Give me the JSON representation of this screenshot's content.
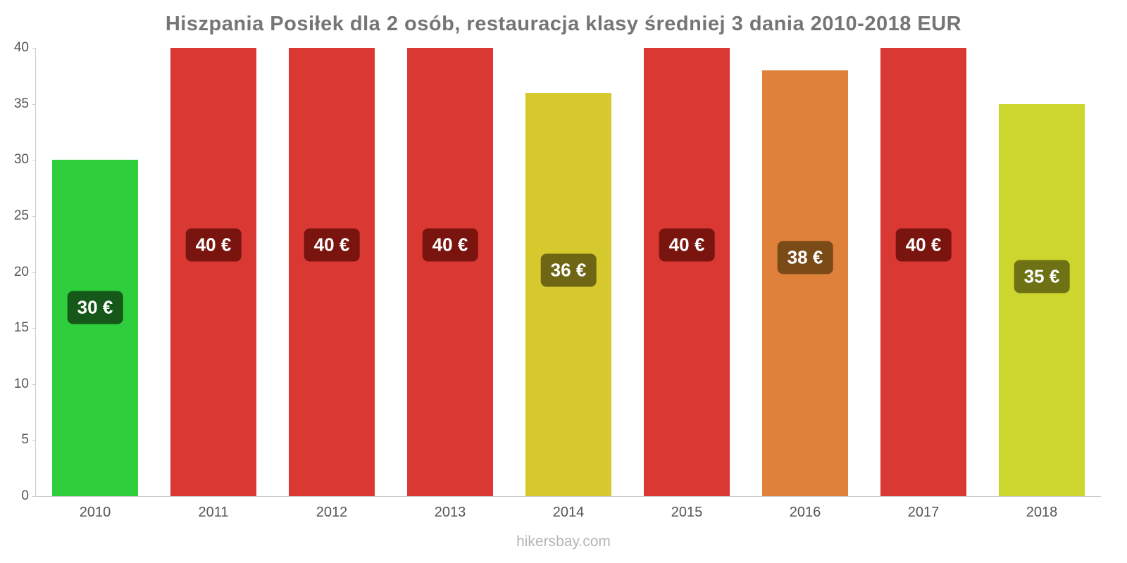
{
  "page": {
    "title": "Hiszpania Posiłek dla 2 osób, restauracja klasy średniej 3 dania 2010-2018 EUR",
    "footer": "hikersbay.com"
  },
  "chart_data": {
    "type": "bar",
    "title": "Hiszpania Posiłek dla 2 osób, restauracja klasy średniej 3 dania 2010-2018 EUR",
    "xlabel": "",
    "ylabel": "",
    "categories": [
      "2010",
      "2011",
      "2012",
      "2013",
      "2014",
      "2015",
      "2016",
      "2017",
      "2018"
    ],
    "values": [
      30,
      40,
      40,
      40,
      36,
      40,
      38,
      40,
      35
    ],
    "value_labels": [
      "30 €",
      "40 €",
      "40 €",
      "40 €",
      "36 €",
      "40 €",
      "38 €",
      "40 €",
      "35 €"
    ],
    "bar_colors": [
      "#2fce3c",
      "#da3832",
      "#da3832",
      "#da3832",
      "#d6c92e",
      "#da3832",
      "#e0813b",
      "#da3832",
      "#cdd62e"
    ],
    "label_bg_colors": [
      "#15581a",
      "#79140f",
      "#79140f",
      "#79140f",
      "#6e6614",
      "#79140f",
      "#7a4a17",
      "#79140f",
      "#6e7214"
    ],
    "ylim": [
      0,
      40
    ],
    "yticks": [
      0,
      5,
      10,
      15,
      20,
      25,
      30,
      35,
      40
    ],
    "grid": false,
    "legend": false,
    "currency": "EUR"
  }
}
